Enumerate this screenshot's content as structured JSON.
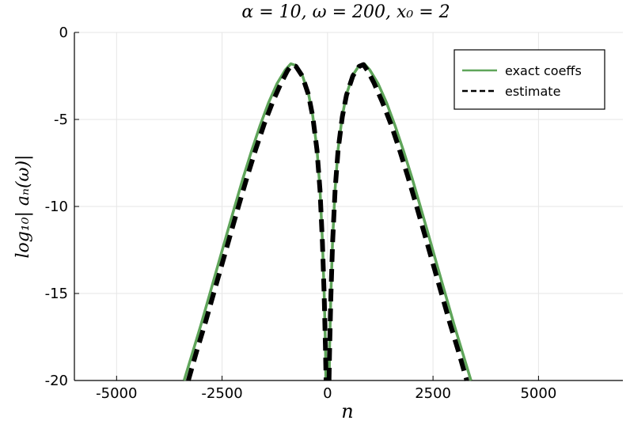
{
  "chart_data": {
    "type": "line",
    "title": "α = 10, ω = 200, x₀ = 2",
    "xlabel": "n",
    "ylabel": "log₁₀| aₙ(ω)|",
    "xlim": [
      -6000,
      7000
    ],
    "ylim": [
      -20,
      0
    ],
    "grid": true,
    "legend_position": "top-right",
    "xticks": [
      -5000,
      -2500,
      0,
      2500,
      5000
    ],
    "xtick_labels": [
      "-5000",
      "-2500",
      "0",
      "2500",
      "5000"
    ],
    "yticks": [
      0,
      -5,
      -10,
      -15,
      -20
    ],
    "ytick_labels": [
      "0",
      "-5",
      "-10",
      "-15",
      "-20"
    ],
    "series": [
      {
        "name": "exact coeffs",
        "color": "#5fa55a",
        "style": "solid",
        "segments": [
          [
            [
              -3400,
              -20
            ],
            [
              -3200,
              -18.4
            ],
            [
              -3000,
              -16.8
            ],
            [
              -2800,
              -15.1
            ],
            [
              -2600,
              -13.4
            ],
            [
              -2400,
              -11.7
            ],
            [
              -2200,
              -10.0
            ],
            [
              -2000,
              -8.35
            ],
            [
              -1800,
              -6.8
            ],
            [
              -1600,
              -5.35
            ],
            [
              -1400,
              -4.05
            ],
            [
              -1200,
              -2.95
            ],
            [
              -1000,
              -2.15
            ],
            [
              -870,
              -1.8
            ],
            [
              -750,
              -1.9
            ],
            [
              -600,
              -2.45
            ],
            [
              -450,
              -3.55
            ],
            [
              -350,
              -4.8
            ],
            [
              -250,
              -6.7
            ],
            [
              -180,
              -9.0
            ],
            [
              -120,
              -12.0
            ],
            [
              -80,
              -15.0
            ],
            [
              -50,
              -18.0
            ],
            [
              -40,
              -20
            ]
          ],
          [
            [
              40,
              -20
            ],
            [
              50,
              -18.0
            ],
            [
              80,
              -15.0
            ],
            [
              120,
              -12.0
            ],
            [
              180,
              -9.0
            ],
            [
              250,
              -6.7
            ],
            [
              350,
              -4.8
            ],
            [
              450,
              -3.55
            ],
            [
              600,
              -2.45
            ],
            [
              750,
              -1.9
            ],
            [
              870,
              -1.8
            ],
            [
              1000,
              -2.15
            ],
            [
              1200,
              -2.95
            ],
            [
              1400,
              -4.05
            ],
            [
              1600,
              -5.35
            ],
            [
              1800,
              -6.8
            ],
            [
              2000,
              -8.35
            ],
            [
              2200,
              -10.0
            ],
            [
              2400,
              -11.7
            ],
            [
              2600,
              -13.4
            ],
            [
              2800,
              -15.1
            ],
            [
              3000,
              -16.8
            ],
            [
              3200,
              -18.4
            ],
            [
              3400,
              -20
            ]
          ]
        ]
      },
      {
        "name": "estimate",
        "color": "#000000",
        "style": "dashed",
        "segments": [
          [
            [
              -3300,
              -20
            ],
            [
              -3100,
              -18.3
            ],
            [
              -2900,
              -16.7
            ],
            [
              -2700,
              -15.0
            ],
            [
              -2500,
              -13.3
            ],
            [
              -2300,
              -11.6
            ],
            [
              -2100,
              -9.9
            ],
            [
              -1900,
              -8.25
            ],
            [
              -1700,
              -6.7
            ],
            [
              -1500,
              -5.25
            ],
            [
              -1300,
              -4.0
            ],
            [
              -1100,
              -2.9
            ],
            [
              -950,
              -2.2
            ],
            [
              -850,
              -1.85
            ],
            [
              -750,
              -1.95
            ],
            [
              -600,
              -2.5
            ],
            [
              -450,
              -3.6
            ],
            [
              -350,
              -4.85
            ],
            [
              -250,
              -6.75
            ],
            [
              -180,
              -9.05
            ],
            [
              -120,
              -12.1
            ],
            [
              -80,
              -15.1
            ],
            [
              -50,
              -18.1
            ],
            [
              -35,
              -20
            ]
          ],
          [
            [
              35,
              -20
            ],
            [
              50,
              -18.1
            ],
            [
              80,
              -15.1
            ],
            [
              120,
              -12.1
            ],
            [
              180,
              -9.05
            ],
            [
              250,
              -6.75
            ],
            [
              350,
              -4.85
            ],
            [
              450,
              -3.6
            ],
            [
              600,
              -2.5
            ],
            [
              750,
              -1.95
            ],
            [
              850,
              -1.85
            ],
            [
              950,
              -2.2
            ],
            [
              1100,
              -2.9
            ],
            [
              1300,
              -4.0
            ],
            [
              1500,
              -5.25
            ],
            [
              1700,
              -6.7
            ],
            [
              1900,
              -8.25
            ],
            [
              2100,
              -9.9
            ],
            [
              2300,
              -11.6
            ],
            [
              2500,
              -13.3
            ],
            [
              2700,
              -15.0
            ],
            [
              2900,
              -16.7
            ],
            [
              3100,
              -18.3
            ],
            [
              3300,
              -20
            ]
          ]
        ]
      }
    ]
  }
}
